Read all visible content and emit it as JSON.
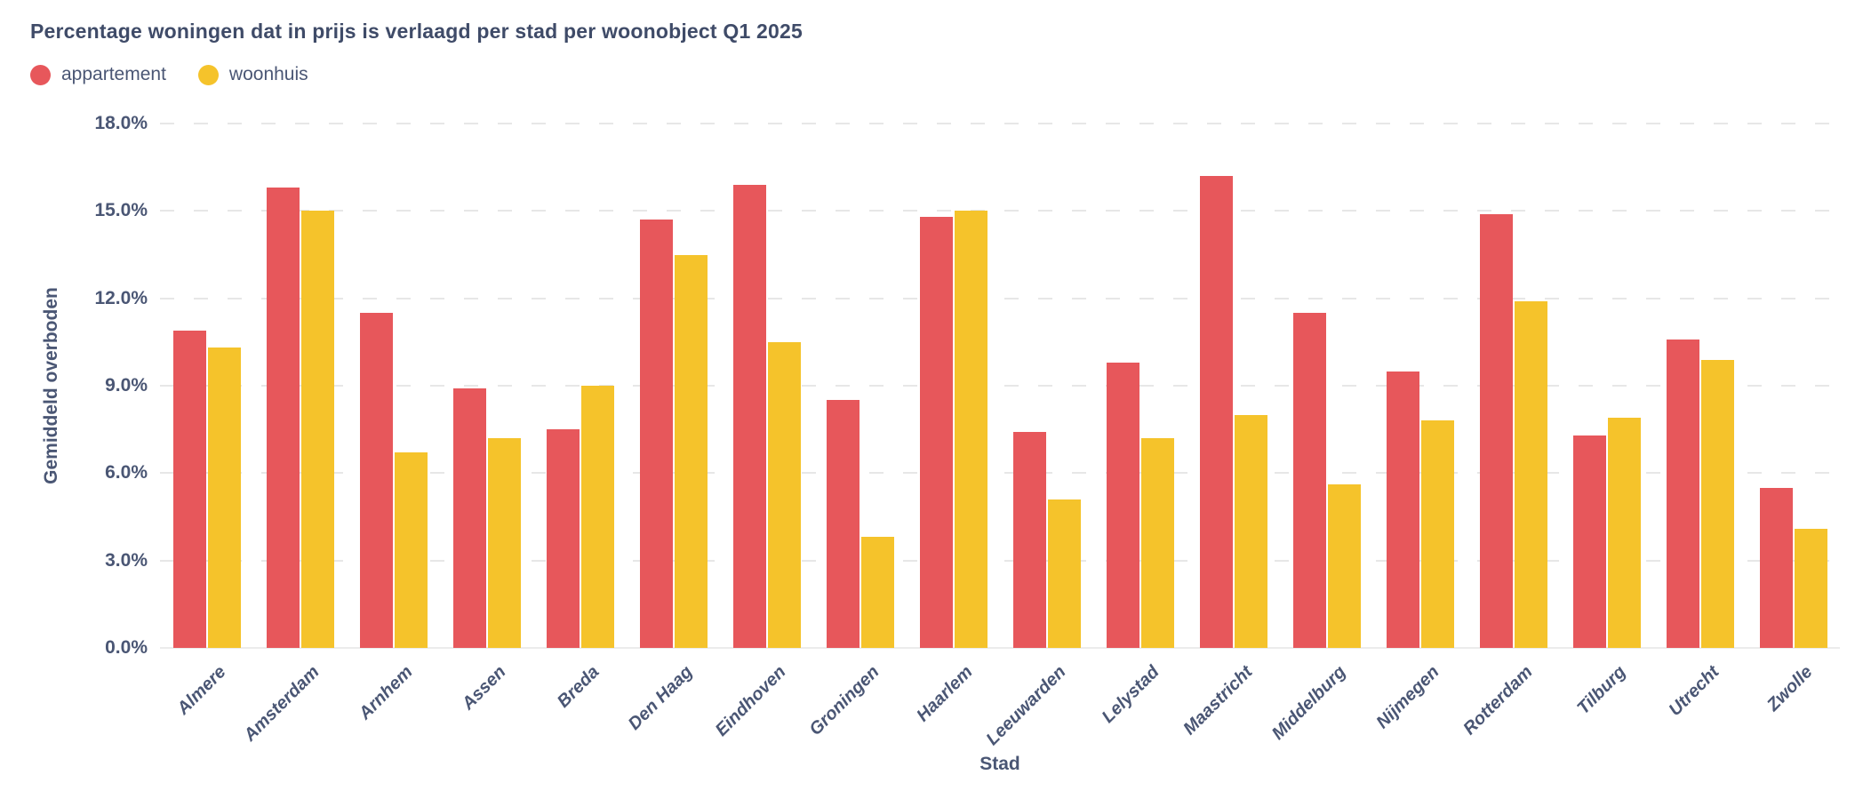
{
  "chart_data": {
    "type": "bar",
    "title": "Percentage woningen dat in prijs is verlaagd per stad per woonobject Q1 2025",
    "xlabel": "Stad",
    "ylabel": "Gemiddeld overboden",
    "ylim": [
      0,
      18
    ],
    "ytick_step": 3,
    "ytick_labels": [
      "0.0%",
      "3.0%",
      "6.0%",
      "9.0%",
      "12.0%",
      "15.0%",
      "18.0%"
    ],
    "grid": "horizontal-dashed",
    "legend_position": "top-left",
    "categories": [
      "Almere",
      "Amsterdam",
      "Arnhem",
      "Assen",
      "Breda",
      "Den Haag",
      "Eindhoven",
      "Groningen",
      "Haarlem",
      "Leeuwarden",
      "Lelystad",
      "Maastricht",
      "Middelburg",
      "Nijmegen",
      "Rotterdam",
      "Tilburg",
      "Utrecht",
      "Zwolle"
    ],
    "series": [
      {
        "name": "appartement",
        "color": "#E7575B",
        "values": [
          10.9,
          15.8,
          11.5,
          8.9,
          7.5,
          14.7,
          15.9,
          8.5,
          14.8,
          7.4,
          9.8,
          16.2,
          11.5,
          9.5,
          14.9,
          7.3,
          10.6,
          5.5
        ]
      },
      {
        "name": "woonhuis",
        "color": "#F5C32B",
        "values": [
          10.3,
          15.0,
          6.7,
          7.2,
          9.0,
          13.5,
          10.5,
          3.8,
          15.0,
          5.1,
          7.2,
          8.0,
          5.6,
          7.8,
          11.9,
          7.9,
          9.9,
          4.1
        ]
      }
    ]
  },
  "colors": {
    "title": "#3F4B68",
    "axis_text": "#4A5674",
    "gridline": "#E7E7E7",
    "axis_line": "#ECECEC",
    "background": "#FFFFFF"
  }
}
